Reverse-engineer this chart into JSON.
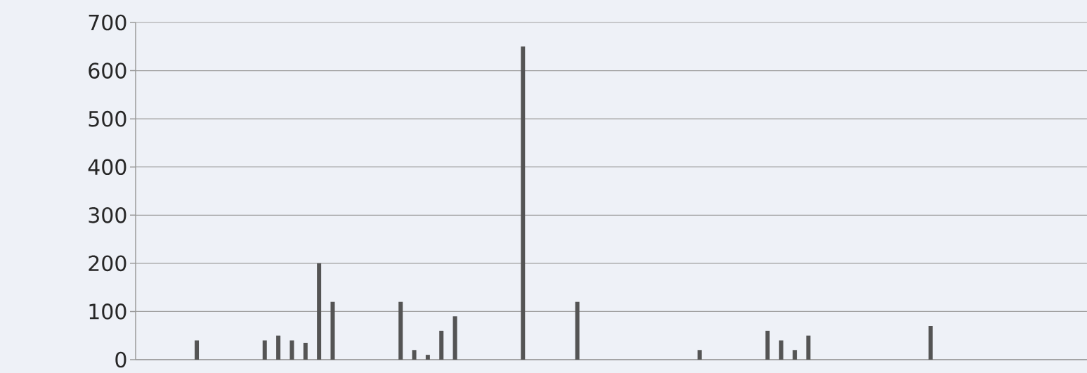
{
  "chart_data": {
    "type": "bar",
    "categories": [
      null,
      null,
      null,
      null,
      null,
      null,
      null,
      null,
      null,
      null,
      null,
      null,
      null,
      null,
      null,
      null,
      null,
      null,
      null,
      null,
      null,
      null,
      null,
      null,
      null,
      null,
      null,
      null,
      null,
      null,
      null,
      null,
      null,
      null,
      null,
      null,
      null,
      null,
      null,
      null,
      null,
      null,
      null,
      null,
      null,
      null,
      null,
      null,
      null,
      null,
      null,
      null,
      null,
      null,
      null,
      null,
      null,
      null,
      null,
      null,
      null,
      null,
      null,
      null,
      null,
      null,
      null,
      null,
      null,
      null
    ],
    "values": [
      0,
      0,
      0,
      0,
      40,
      0,
      0,
      0,
      0,
      40,
      50,
      40,
      35,
      200,
      120,
      0,
      0,
      0,
      0,
      120,
      20,
      10,
      60,
      90,
      0,
      0,
      0,
      0,
      650,
      0,
      0,
      0,
      120,
      0,
      0,
      0,
      0,
      0,
      0,
      0,
      0,
      20,
      0,
      0,
      0,
      0,
      60,
      40,
      20,
      50,
      0,
      0,
      0,
      0,
      0,
      0,
      0,
      0,
      70,
      0,
      0,
      0,
      0,
      0,
      0,
      0,
      0,
      0,
      0,
      0
    ],
    "color": "#545454",
    "ylim": [
      0,
      700
    ],
    "yticks": [
      0,
      100,
      200,
      300,
      400,
      500,
      600,
      700
    ],
    "grid": "y",
    "tick_labels": "y"
  }
}
